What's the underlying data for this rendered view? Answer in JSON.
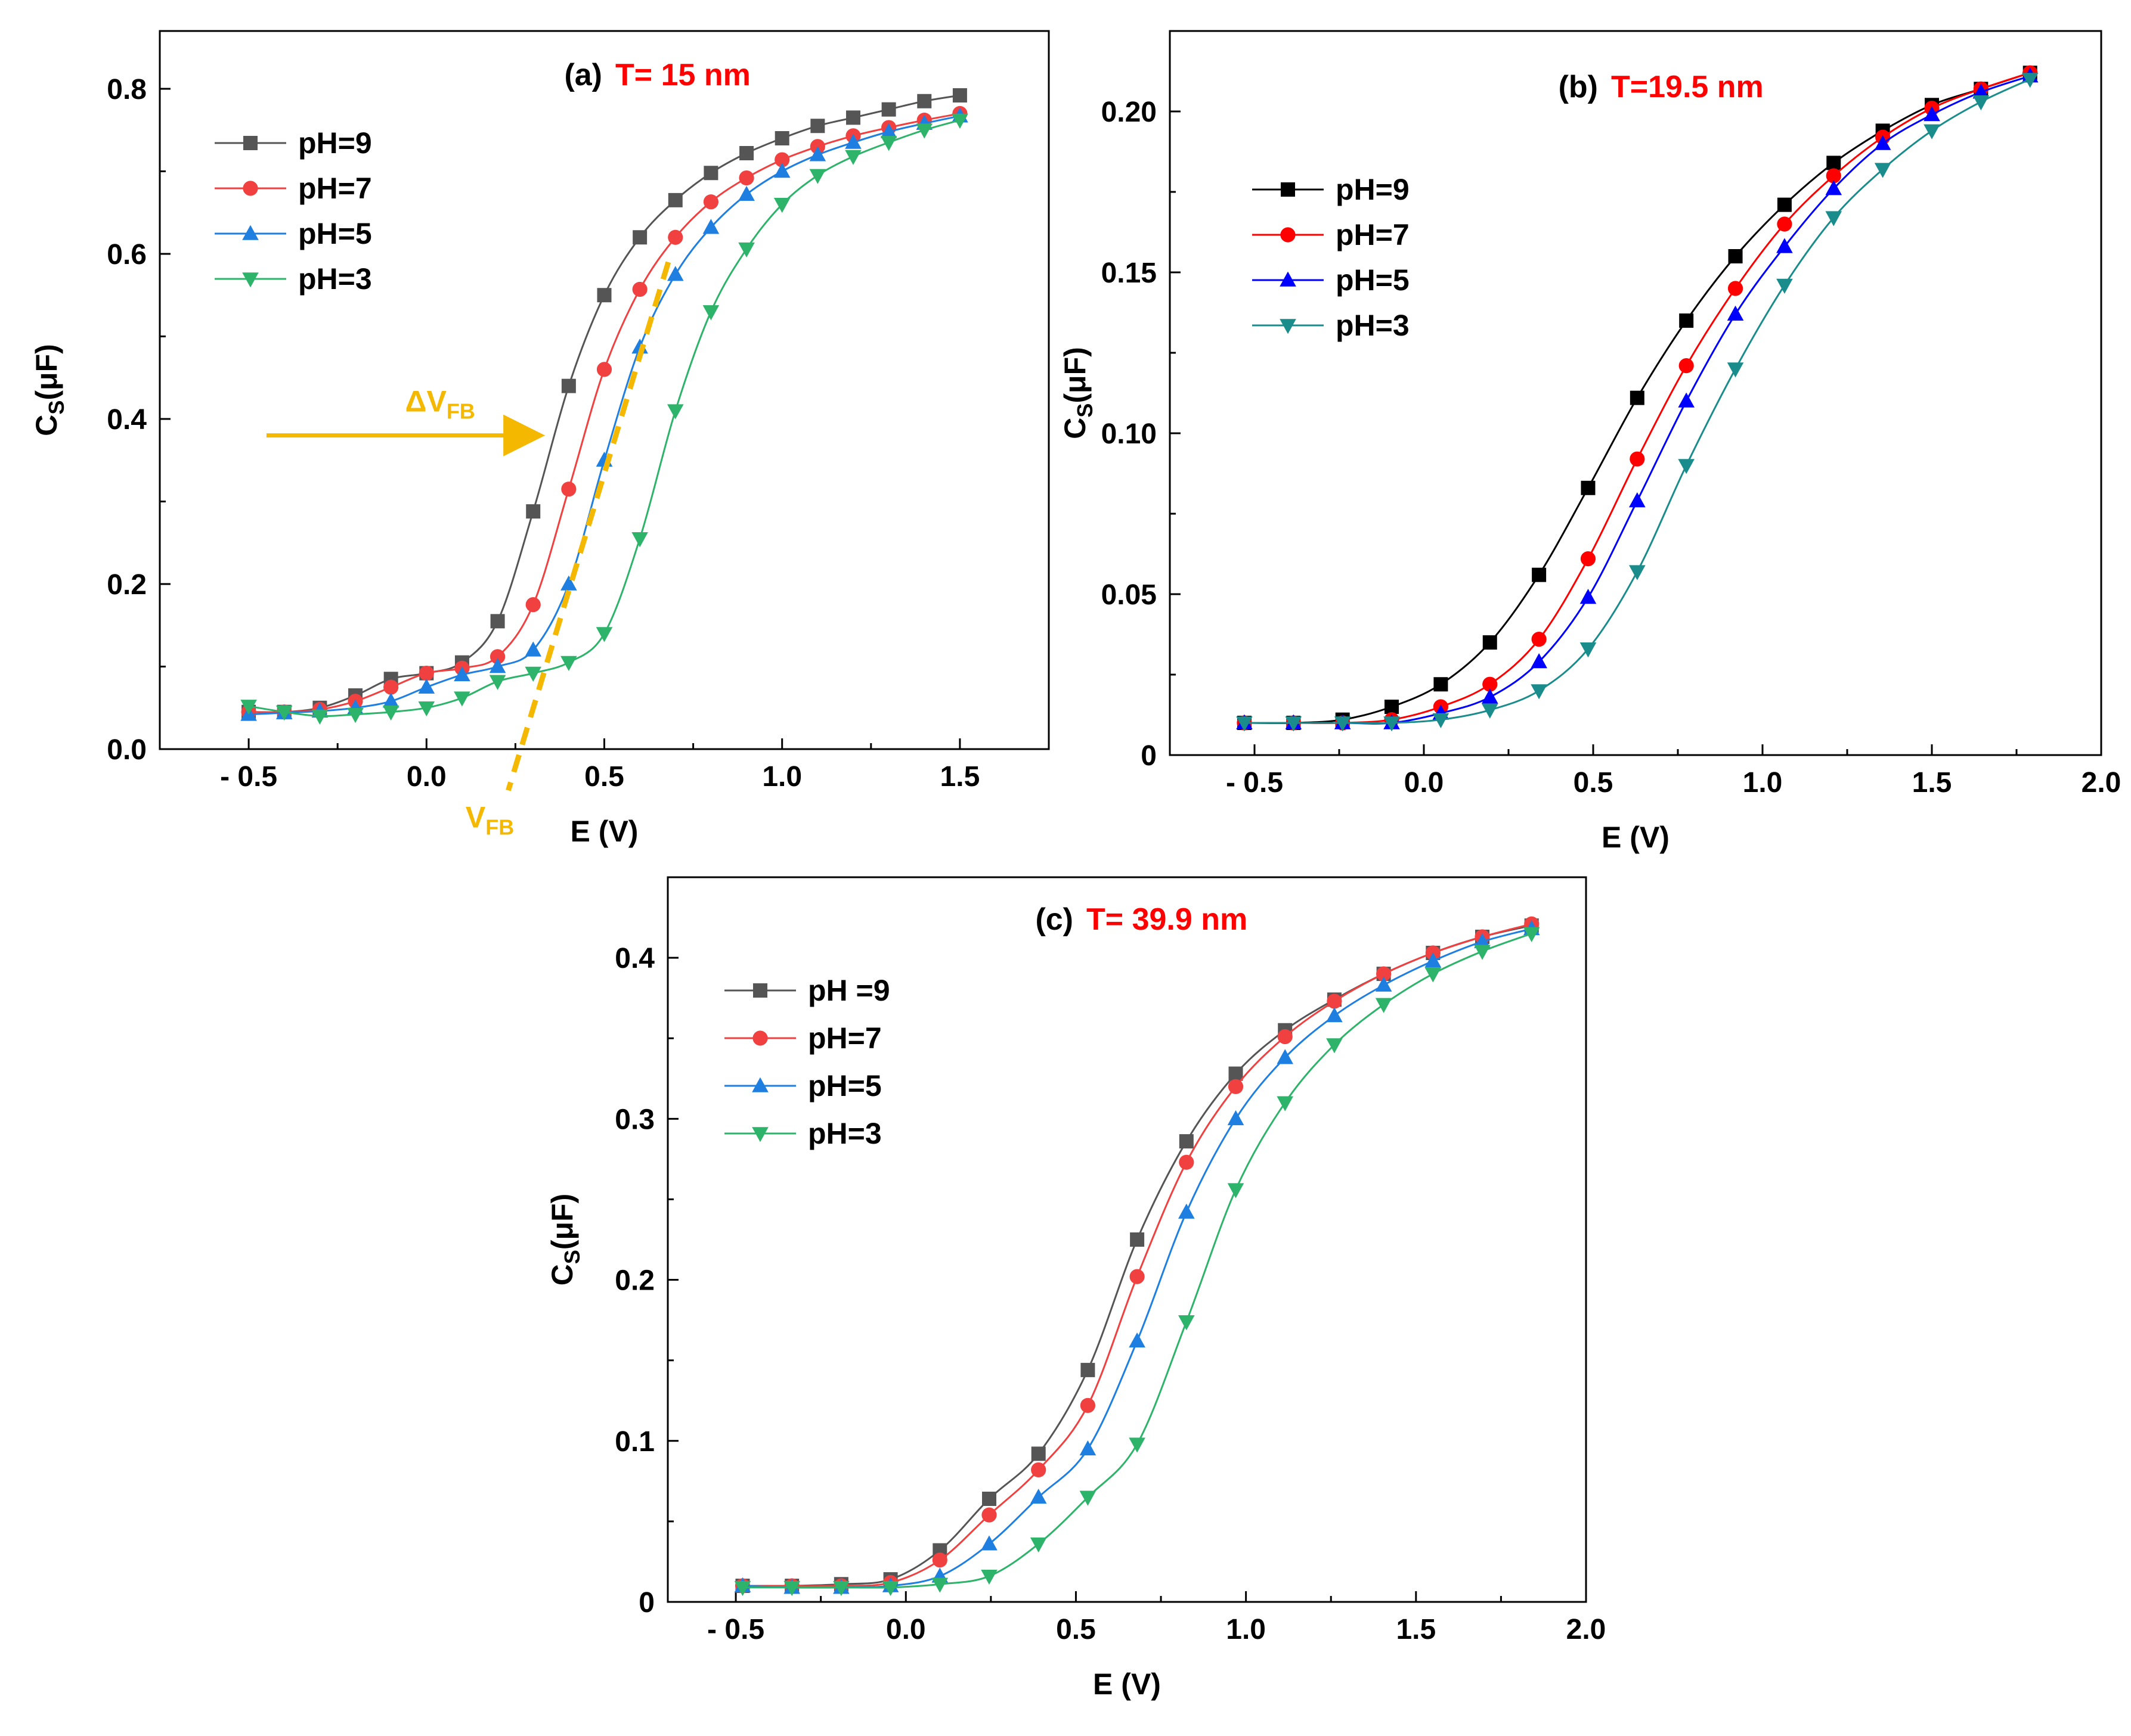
{
  "figure": {
    "charts": [
      {
        "id": "a",
        "type": "line",
        "panel_label": "(a)",
        "panel_temp": "T= 15 nm",
        "xlabel": "E (V)",
        "ylabel_main": "C",
        "ylabel_sub": "S",
        "ylabel_unit": "(μF)",
        "xlim": [
          -0.75,
          1.75
        ],
        "ylim": [
          0,
          0.87
        ],
        "xticks": [
          -0.5,
          0.0,
          0.5,
          1.0,
          1.5
        ],
        "xtick_labels": [
          "- 0.5",
          "0.0",
          "0.5",
          "1.0",
          "1.5"
        ],
        "yticks": [
          0.0,
          0.2,
          0.4,
          0.6,
          0.8
        ],
        "ytick_labels": [
          "0.0",
          "0.2",
          "0.4",
          "0.6",
          "0.8"
        ],
        "legend_position": "top-left",
        "x": [
          -0.5,
          -0.4,
          -0.3,
          -0.2,
          -0.1,
          0.0,
          0.1,
          0.2,
          0.3,
          0.4,
          0.5,
          0.6,
          0.7,
          0.8,
          0.9,
          1.0,
          1.1,
          1.2,
          1.3,
          1.4,
          1.5
        ],
        "series": [
          {
            "name": "pH=9",
            "color": "#555555",
            "marker": "square",
            "values": [
              0.045,
              0.045,
              0.05,
              0.065,
              0.085,
              0.092,
              0.105,
              0.155,
              0.288,
              0.44,
              0.55,
              0.62,
              0.665,
              0.698,
              0.722,
              0.74,
              0.755,
              0.765,
              0.775,
              0.785,
              0.792
            ]
          },
          {
            "name": "pH=7",
            "color": "#f04040",
            "marker": "circle",
            "values": [
              0.045,
              0.045,
              0.048,
              0.058,
              0.075,
              0.092,
              0.098,
              0.112,
              0.175,
              0.315,
              0.46,
              0.557,
              0.62,
              0.663,
              0.692,
              0.714,
              0.73,
              0.743,
              0.753,
              0.762,
              0.77
            ]
          },
          {
            "name": "pH=5",
            "color": "#1e7fe0",
            "marker": "triangle-up",
            "values": [
              0.042,
              0.044,
              0.046,
              0.05,
              0.058,
              0.075,
              0.09,
              0.1,
              0.12,
              0.2,
              0.35,
              0.487,
              0.575,
              0.632,
              0.672,
              0.7,
              0.72,
              0.735,
              0.748,
              0.758,
              0.767
            ]
          },
          {
            "name": "pH=3",
            "color": "#2eb36a",
            "marker": "triangle-down",
            "values": [
              0.052,
              0.045,
              0.04,
              0.042,
              0.045,
              0.05,
              0.062,
              0.082,
              0.092,
              0.105,
              0.14,
              0.255,
              0.41,
              0.53,
              0.606,
              0.66,
              0.695,
              0.718,
              0.735,
              0.75,
              0.762
            ]
          }
        ],
        "annotations": [
          {
            "type": "arrow",
            "text_main": "ΔV",
            "text_sub": "FB",
            "color": "#f5b800"
          },
          {
            "type": "dashed-line",
            "text_main": "V",
            "text_sub": "FB",
            "color": "#f5b800"
          }
        ]
      },
      {
        "id": "b",
        "type": "line",
        "panel_label": "(b)",
        "panel_temp": "T=19.5 nm",
        "xlabel": "E (V)",
        "ylabel_main": "C",
        "ylabel_sub": "S",
        "ylabel_unit": "(μF)",
        "xlim": [
          -0.75,
          2.0
        ],
        "ylim": [
          0,
          0.225
        ],
        "xticks": [
          -0.5,
          0.0,
          0.5,
          1.0,
          1.5,
          2.0
        ],
        "xtick_labels": [
          "- 0.5",
          "0.0",
          "0.5",
          "1.0",
          "1.5",
          "2.0"
        ],
        "yticks": [
          0.0,
          0.05,
          0.1,
          0.15,
          0.2
        ],
        "ytick_labels": [
          "0",
          "0.05",
          "0.10",
          "0.15",
          "0.20"
        ],
        "legend_position": "top-left",
        "x": [
          -0.53,
          -0.385,
          -0.24,
          -0.095,
          0.05,
          0.195,
          0.34,
          0.485,
          0.63,
          0.775,
          0.92,
          1.065,
          1.21,
          1.355,
          1.5,
          1.645,
          1.79
        ],
        "series": [
          {
            "name": "pH=9",
            "color": "#000000",
            "marker": "square",
            "values": [
              0.01,
              0.01,
              0.011,
              0.015,
              0.022,
              0.035,
              0.056,
              0.083,
              0.111,
              0.135,
              0.155,
              0.171,
              0.184,
              0.194,
              0.202,
              0.207,
              0.212
            ]
          },
          {
            "name": "pH=7",
            "color": "#ff0000",
            "marker": "circle",
            "values": [
              0.01,
              0.01,
              0.01,
              0.011,
              0.015,
              0.022,
              0.036,
              0.061,
              0.092,
              0.121,
              0.145,
              0.165,
              0.18,
              0.192,
              0.201,
              0.207,
              0.212
            ]
          },
          {
            "name": "pH=5",
            "color": "#0000ff",
            "marker": "triangle-up",
            "values": [
              0.01,
              0.01,
              0.01,
              0.01,
              0.013,
              0.018,
              0.029,
              0.049,
              0.079,
              0.11,
              0.137,
              0.158,
              0.176,
              0.19,
              0.199,
              0.206,
              0.211
            ]
          },
          {
            "name": "pH=3",
            "color": "#1a8c8c",
            "marker": "triangle-down",
            "values": [
              0.01,
              0.01,
              0.01,
              0.01,
              0.011,
              0.014,
              0.02,
              0.033,
              0.057,
              0.09,
              0.12,
              0.146,
              0.167,
              0.182,
              0.194,
              0.203,
              0.21
            ]
          }
        ]
      },
      {
        "id": "c",
        "type": "line",
        "panel_label": "(c)",
        "panel_temp": "T= 39.9 nm",
        "xlabel": "E (V)",
        "ylabel_main": "C",
        "ylabel_sub": "S",
        "ylabel_unit": "(μF)",
        "xlim": [
          -0.7,
          2.0
        ],
        "ylim": [
          0,
          0.45
        ],
        "xticks": [
          -0.5,
          0.0,
          0.5,
          1.0,
          1.5,
          2.0
        ],
        "xtick_labels": [
          "- 0.5",
          "0.0",
          "0.5",
          "1.0",
          "1.5",
          "2.0"
        ],
        "yticks": [
          0.0,
          0.1,
          0.2,
          0.3,
          0.4
        ],
        "ytick_labels": [
          "0",
          "0.1",
          "0.2",
          "0.3",
          "0.4"
        ],
        "legend_position": "top-left",
        "x": [
          -0.48,
          -0.335,
          -0.19,
          -0.045,
          0.1,
          0.245,
          0.39,
          0.535,
          0.68,
          0.825,
          0.97,
          1.115,
          1.26,
          1.405,
          1.55,
          1.695,
          1.84
        ],
        "series": [
          {
            "name": "pH =9",
            "color": "#555555",
            "marker": "square",
            "values": [
              0.01,
              0.01,
              0.011,
              0.014,
              0.032,
              0.064,
              0.092,
              0.144,
              0.225,
              0.286,
              0.328,
              0.355,
              0.374,
              0.39,
              0.403,
              0.413,
              0.42
            ]
          },
          {
            "name": "pH=7",
            "color": "#f04040",
            "marker": "circle",
            "values": [
              0.01,
              0.01,
              0.01,
              0.012,
              0.026,
              0.054,
              0.082,
              0.122,
              0.202,
              0.273,
              0.32,
              0.351,
              0.373,
              0.39,
              0.403,
              0.413,
              0.421
            ]
          },
          {
            "name": "pH=5",
            "color": "#1e7fe0",
            "marker": "triangle-up",
            "values": [
              0.01,
              0.009,
              0.009,
              0.01,
              0.016,
              0.036,
              0.065,
              0.095,
              0.162,
              0.242,
              0.3,
              0.338,
              0.364,
              0.383,
              0.398,
              0.41,
              0.418
            ]
          },
          {
            "name": "pH=3",
            "color": "#2eb36a",
            "marker": "triangle-down",
            "values": [
              0.009,
              0.009,
              0.009,
              0.009,
              0.011,
              0.016,
              0.036,
              0.065,
              0.098,
              0.174,
              0.256,
              0.31,
              0.346,
              0.371,
              0.39,
              0.404,
              0.415
            ]
          }
        ]
      }
    ]
  }
}
